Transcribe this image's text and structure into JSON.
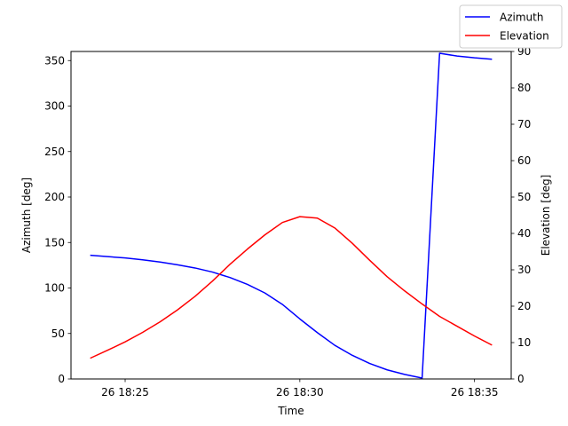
{
  "chart_data": {
    "type": "line",
    "xlabel": "Time",
    "ylabel_left": "Azimuth [deg]",
    "ylabel_right": "Elevation [deg]",
    "x_minutes": [
      24.0,
      24.5,
      25.0,
      25.5,
      26.0,
      26.5,
      27.0,
      27.5,
      28.0,
      28.5,
      29.0,
      29.5,
      30.0,
      30.5,
      31.0,
      31.5,
      32.0,
      32.5,
      33.0,
      33.5,
      34.0,
      34.5,
      35.0,
      35.5
    ],
    "x_ticks": [
      {
        "minute": 25,
        "label": "26 18:25"
      },
      {
        "minute": 30,
        "label": "26 18:30"
      },
      {
        "minute": 35,
        "label": "26 18:35"
      }
    ],
    "xlim_minutes": [
      23.45,
      36.05
    ],
    "series": [
      {
        "name": "Azimuth",
        "axis": "left",
        "color": "#0000ff",
        "x": [
          24.0,
          24.5,
          25.0,
          25.5,
          26.0,
          26.5,
          27.0,
          27.5,
          28.0,
          28.5,
          29.0,
          29.5,
          30.0,
          30.5,
          31.0,
          31.5,
          32.0,
          32.5,
          33.0,
          33.5,
          33.5,
          34.0,
          34.5,
          35.0,
          35.5
        ],
        "values": [
          136,
          134.5,
          133,
          131,
          128.5,
          125.5,
          122,
          117.5,
          111.5,
          104,
          94.5,
          82,
          66,
          51,
          37,
          26,
          17,
          10,
          5,
          1,
          1,
          358,
          355,
          353,
          351.5
        ]
      },
      {
        "name": "Elevation",
        "axis": "right",
        "color": "#ff0000",
        "x": [
          24.0,
          24.5,
          25.0,
          25.5,
          26.0,
          26.5,
          27.0,
          27.5,
          28.0,
          28.5,
          29.0,
          29.5,
          30.0,
          30.5,
          31.0,
          31.5,
          32.0,
          32.5,
          33.0,
          33.5,
          34.0,
          34.5,
          35.0,
          35.5
        ],
        "values": [
          5.7,
          7.9,
          10.2,
          12.8,
          15.7,
          19.0,
          22.7,
          26.9,
          31.5,
          35.7,
          39.6,
          43.0,
          44.6,
          44.2,
          41.5,
          37.3,
          32.6,
          28.1,
          24.2,
          20.6,
          17.2,
          14.5,
          11.8,
          9.3
        ]
      }
    ],
    "ylim_left": [
      0,
      360
    ],
    "yticks_left": [
      0,
      50,
      100,
      150,
      200,
      250,
      300,
      350
    ],
    "ylim_right": [
      0,
      90
    ],
    "yticks_right": [
      0,
      10,
      20,
      30,
      40,
      50,
      60,
      70,
      80,
      90
    ],
    "grid": false,
    "legend": {
      "placement": "top-right",
      "entries": [
        {
          "label": "Azimuth",
          "color": "#0000ff"
        },
        {
          "label": "Elevation",
          "color": "#ff0000"
        }
      ]
    }
  }
}
